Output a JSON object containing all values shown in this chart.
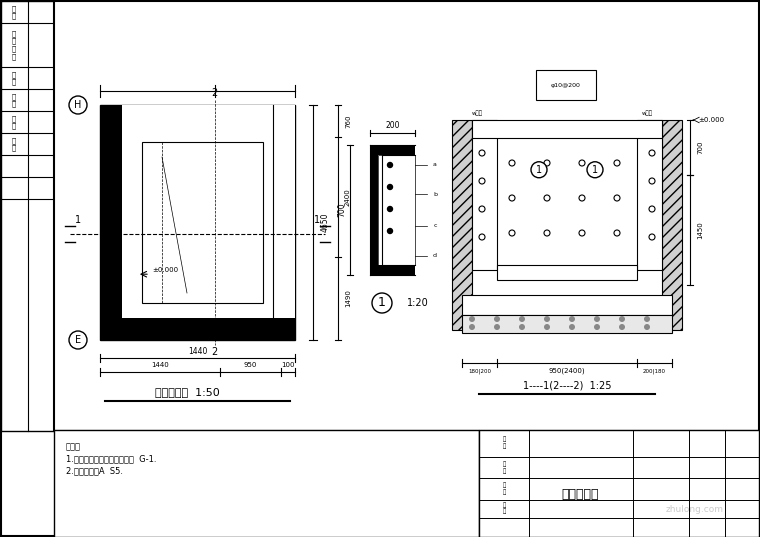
{
  "bg_color": "#ffffff",
  "plan_label": "集水井平面  1:50",
  "section_label": "1----1(2----2)  1:25",
  "note_text1": "说明：",
  "note_text2": "1.混凝土强度等级见结构图纸  G-1.",
  "note_text3": "2.其他说明见A  S5.",
  "title_label": "集水井大样",
  "watermark": "zhulong.com",
  "scale1_label": "1:20"
}
